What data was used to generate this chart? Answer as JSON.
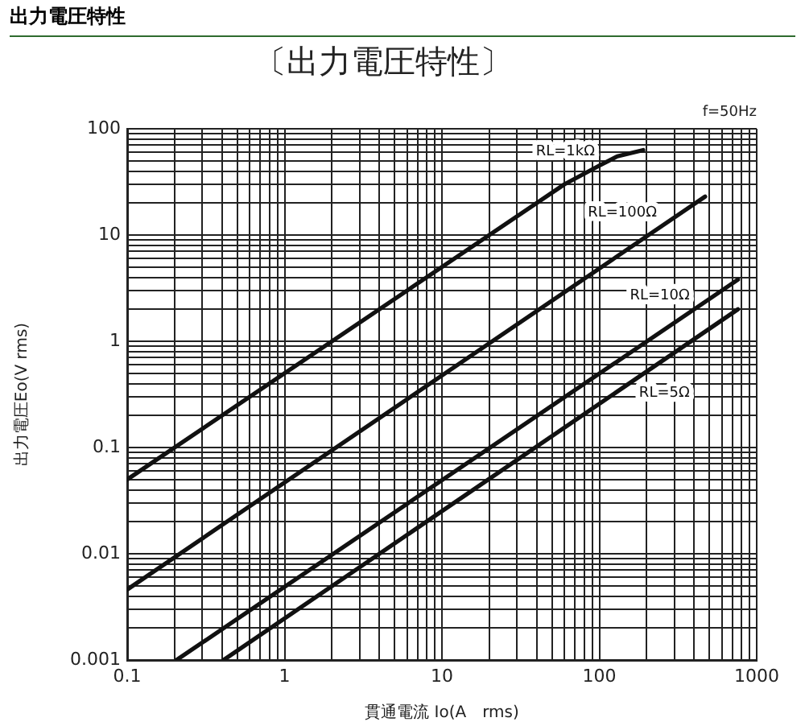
{
  "chart_data": {
    "type": "line",
    "title": "出力電圧特性",
    "subtitle": "〔出力電圧特性〕",
    "xlabel": "貫通電流 Io(A　rms)",
    "ylabel": "出力電圧Eo(V rms)",
    "annotations": [
      "f=50Hz"
    ],
    "log": "xy",
    "grid": true,
    "marker": "none",
    "line_style": "solid",
    "xlim": [
      0.1,
      1000
    ],
    "ylim": [
      0.001,
      100
    ],
    "xticks": [
      0.1,
      {
        "value": 0.2,
        "label": null
      },
      {
        "value": 0.3,
        "label": null
      },
      {
        "value": 0.4,
        "label": null
      },
      {
        "value": 0.5,
        "label": null
      },
      {
        "value": 0.6,
        "label": null
      },
      {
        "value": 0.7,
        "label": null
      },
      {
        "value": 0.8,
        "label": null
      },
      {
        "value": 0.9,
        "label": null
      },
      1,
      {
        "value": 2,
        "label": null
      },
      {
        "value": 3,
        "label": null
      },
      {
        "value": 4,
        "label": null
      },
      {
        "value": 5,
        "label": null
      },
      {
        "value": 6,
        "label": null
      },
      {
        "value": 7,
        "label": null
      },
      {
        "value": 8,
        "label": null
      },
      {
        "value": 9,
        "label": null
      },
      10,
      {
        "value": 20,
        "label": null
      },
      {
        "value": 30,
        "label": null
      },
      {
        "value": 40,
        "label": null
      },
      {
        "value": 50,
        "label": null
      },
      {
        "value": 60,
        "label": null
      },
      {
        "value": 70,
        "label": null
      },
      {
        "value": 80,
        "label": null
      },
      {
        "value": 90,
        "label": null
      },
      100,
      {
        "value": 200,
        "label": null
      },
      {
        "value": 300,
        "label": null
      },
      {
        "value": 400,
        "label": null
      },
      {
        "value": 500,
        "label": null
      },
      {
        "value": 600,
        "label": null
      },
      {
        "value": 700,
        "label": null
      },
      {
        "value": 800,
        "label": null
      },
      {
        "value": 900,
        "label": null
      },
      1000
    ],
    "yticks": [
      0.001,
      {
        "value": 0.002,
        "label": null
      },
      {
        "value": 0.003,
        "label": null
      },
      {
        "value": 0.004,
        "label": null
      },
      {
        "value": 0.005,
        "label": null
      },
      {
        "value": 0.006,
        "label": null
      },
      {
        "value": 0.007,
        "label": null
      },
      {
        "value": 0.008,
        "label": null
      },
      {
        "value": 0.009,
        "label": null
      },
      0.01,
      {
        "value": 0.02,
        "label": null
      },
      {
        "value": 0.03,
        "label": null
      },
      {
        "value": 0.04,
        "label": null
      },
      {
        "value": 0.05,
        "label": null
      },
      {
        "value": 0.06,
        "label": null
      },
      {
        "value": 0.07,
        "label": null
      },
      {
        "value": 0.08,
        "label": null
      },
      {
        "value": 0.09,
        "label": null
      },
      0.1,
      {
        "value": 0.2,
        "label": null
      },
      {
        "value": 0.3,
        "label": null
      },
      {
        "value": 0.4,
        "label": null
      },
      {
        "value": 0.5,
        "label": null
      },
      {
        "value": 0.6,
        "label": null
      },
      {
        "value": 0.7,
        "label": null
      },
      {
        "value": 0.8,
        "label": null
      },
      {
        "value": 0.9,
        "label": null
      },
      1,
      {
        "value": 2,
        "label": null
      },
      {
        "value": 3,
        "label": null
      },
      {
        "value": 4,
        "label": null
      },
      {
        "value": 5,
        "label": null
      },
      {
        "value": 6,
        "label": null
      },
      {
        "value": 7,
        "label": null
      },
      {
        "value": 8,
        "label": null
      },
      {
        "value": 9,
        "label": null
      },
      10,
      {
        "value": 20,
        "label": null
      },
      {
        "value": 30,
        "label": null
      },
      {
        "value": 40,
        "label": null
      },
      {
        "value": 50,
        "label": null
      },
      {
        "value": 60,
        "label": null
      },
      {
        "value": 70,
        "label": null
      },
      {
        "value": 80,
        "label": null
      },
      {
        "value": 90,
        "label": null
      },
      100
    ],
    "series": [
      {
        "name": "RL=1kΩ",
        "color": "#111111",
        "x": [
          0.1,
          60,
          100,
          130,
          190
        ],
        "values": [
          0.05,
          30,
          45,
          55,
          63
        ]
      },
      {
        "name": "RL=100Ω",
        "color": "#111111",
        "x": [
          0.1,
          470
        ],
        "values": [
          0.0046,
          23
        ]
      },
      {
        "name": "RL=10Ω",
        "color": "#111111",
        "x": [
          0.206,
          760
        ],
        "values": [
          0.001,
          3.8
        ]
      },
      {
        "name": "RL=5Ω",
        "color": "#111111",
        "x": [
          0.41,
          760
        ],
        "values": [
          0.001,
          2
        ]
      }
    ]
  }
}
